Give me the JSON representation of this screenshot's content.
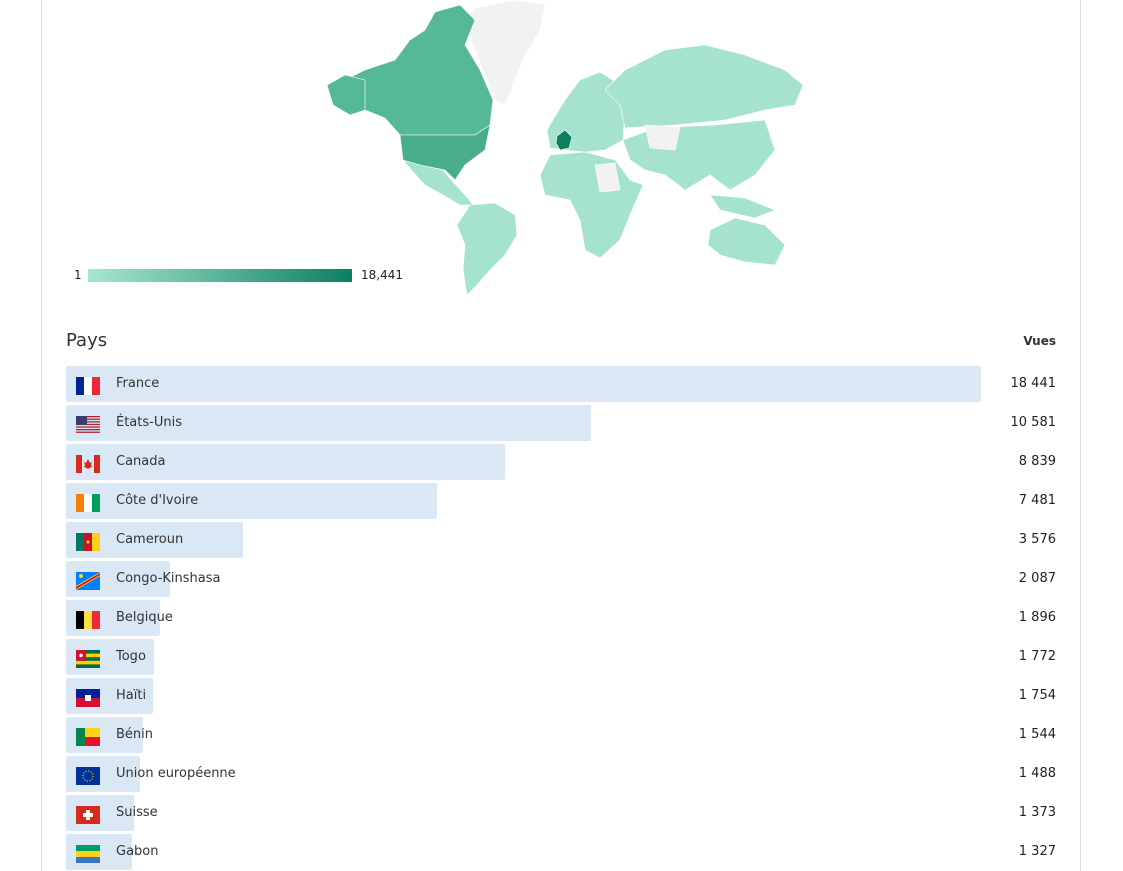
{
  "map": {
    "legend_min": "1",
    "legend_max": "18,441",
    "color_low": "#a8e6d1",
    "color_high": "#0b8060",
    "no_data_color": "#f2f2f2"
  },
  "table": {
    "title": "Pays",
    "value_header": "Vues",
    "max_value": 18441,
    "bar_color": "#dae8f5",
    "rows": [
      {
        "country": "France",
        "flag": "fr",
        "value": 18441,
        "label": "18 441"
      },
      {
        "country": "États-Unis",
        "flag": "us",
        "value": 10581,
        "label": "10 581"
      },
      {
        "country": "Canada",
        "flag": "ca",
        "value": 8839,
        "label": "8 839"
      },
      {
        "country": "Côte d'Ivoire",
        "flag": "ci",
        "value": 7481,
        "label": "7 481"
      },
      {
        "country": "Cameroun",
        "flag": "cm",
        "value": 3576,
        "label": "3 576"
      },
      {
        "country": "Congo-Kinshasa",
        "flag": "cd",
        "value": 2087,
        "label": "2 087"
      },
      {
        "country": "Belgique",
        "flag": "be",
        "value": 1896,
        "label": "1 896"
      },
      {
        "country": "Togo",
        "flag": "tg",
        "value": 1772,
        "label": "1 772"
      },
      {
        "country": "Haïti",
        "flag": "ht",
        "value": 1754,
        "label": "1 754"
      },
      {
        "country": "Bénin",
        "flag": "bj",
        "value": 1544,
        "label": "1 544"
      },
      {
        "country": "Union européenne",
        "flag": "eu",
        "value": 1488,
        "label": "1 488"
      },
      {
        "country": "Suisse",
        "flag": "ch",
        "value": 1373,
        "label": "1 373"
      },
      {
        "country": "Gabon",
        "flag": "ga",
        "value": 1327,
        "label": "1 327"
      }
    ]
  }
}
